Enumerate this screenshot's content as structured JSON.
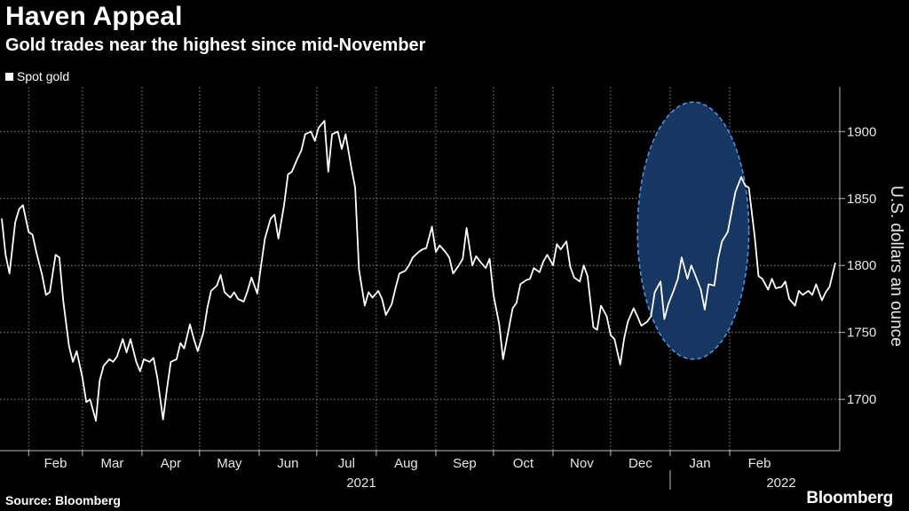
{
  "header": {
    "title": "Haven Appeal",
    "subtitle": "Gold trades near the highest since mid-November",
    "legend_label": "Spot gold"
  },
  "footer": {
    "source": "Source: Bloomberg",
    "brand": "Bloomberg"
  },
  "colors": {
    "background": "#000000",
    "line": "#ffffff",
    "highlight_fill": "#173a66",
    "highlight_stroke": "#4d90e0"
  },
  "chart_data": {
    "type": "line",
    "title": "Haven Appeal",
    "subtitle": "Gold trades near the highest since mid-November",
    "xlabel": "",
    "ylabel": "U.S. dollars an ounce",
    "ylim": [
      1665,
      1930
    ],
    "yticks": [
      1700,
      1750,
      1800,
      1850,
      1900
    ],
    "grid": true,
    "legend": "top-left",
    "year_labels": [
      "2021",
      "2022"
    ],
    "x_ticks": [
      {
        "label": "Feb",
        "date": "2021-02-01"
      },
      {
        "label": "Mar",
        "date": "2021-03-01"
      },
      {
        "label": "Apr",
        "date": "2021-04-01"
      },
      {
        "label": "May",
        "date": "2021-05-01"
      },
      {
        "label": "Jun",
        "date": "2021-06-01"
      },
      {
        "label": "Jul",
        "date": "2021-07-01"
      },
      {
        "label": "Aug",
        "date": "2021-08-01"
      },
      {
        "label": "Sep",
        "date": "2021-09-01"
      },
      {
        "label": "Oct",
        "date": "2021-10-01"
      },
      {
        "label": "Nov",
        "date": "2021-11-01"
      },
      {
        "label": "Dec",
        "date": "2021-12-01"
      },
      {
        "label": "Jan",
        "date": "2022-01-01"
      },
      {
        "label": "Feb",
        "date": "2022-02-01"
      }
    ],
    "highlight": {
      "shape": "ellipse",
      "x_start": "2021-12-15",
      "x_end": "2022-02-11",
      "y_min": 1730,
      "y_max": 1922
    },
    "series": [
      {
        "name": "Spot gold",
        "points": [
          [
            "2021-01-18",
            1835
          ],
          [
            "2021-01-20",
            1808
          ],
          [
            "2021-01-22",
            1794
          ],
          [
            "2021-01-25",
            1832
          ],
          [
            "2021-01-27",
            1842
          ],
          [
            "2021-01-29",
            1845
          ],
          [
            "2021-02-01",
            1825
          ],
          [
            "2021-02-03",
            1823
          ],
          [
            "2021-02-05",
            1810
          ],
          [
            "2021-02-08",
            1793
          ],
          [
            "2021-02-10",
            1778
          ],
          [
            "2021-02-12",
            1780
          ],
          [
            "2021-02-15",
            1808
          ],
          [
            "2021-02-17",
            1806
          ],
          [
            "2021-02-19",
            1774
          ],
          [
            "2021-02-22",
            1740
          ],
          [
            "2021-02-24",
            1728
          ],
          [
            "2021-02-26",
            1736
          ],
          [
            "2021-03-01",
            1716
          ],
          [
            "2021-03-03",
            1698
          ],
          [
            "2021-03-05",
            1700
          ],
          [
            "2021-03-08",
            1684
          ],
          [
            "2021-03-10",
            1714
          ],
          [
            "2021-03-12",
            1725
          ],
          [
            "2021-03-15",
            1730
          ],
          [
            "2021-03-17",
            1728
          ],
          [
            "2021-03-19",
            1732
          ],
          [
            "2021-03-22",
            1745
          ],
          [
            "2021-03-24",
            1735
          ],
          [
            "2021-03-26",
            1745
          ],
          [
            "2021-03-29",
            1728
          ],
          [
            "2021-03-31",
            1721
          ],
          [
            "2021-04-02",
            1730
          ],
          [
            "2021-04-05",
            1728
          ],
          [
            "2021-04-07",
            1731
          ],
          [
            "2021-04-09",
            1716
          ],
          [
            "2021-04-12",
            1685
          ],
          [
            "2021-04-14",
            1708
          ],
          [
            "2021-04-16",
            1728
          ],
          [
            "2021-04-19",
            1730
          ],
          [
            "2021-04-21",
            1742
          ],
          [
            "2021-04-23",
            1738
          ],
          [
            "2021-04-26",
            1756
          ],
          [
            "2021-04-28",
            1745
          ],
          [
            "2021-04-30",
            1736
          ],
          [
            "2021-05-03",
            1750
          ],
          [
            "2021-05-05",
            1768
          ],
          [
            "2021-05-07",
            1781
          ],
          [
            "2021-05-10",
            1785
          ],
          [
            "2021-05-12",
            1793
          ],
          [
            "2021-05-14",
            1780
          ],
          [
            "2021-05-17",
            1776
          ],
          [
            "2021-05-19",
            1780
          ],
          [
            "2021-05-21",
            1775
          ],
          [
            "2021-05-24",
            1773
          ],
          [
            "2021-05-26",
            1781
          ],
          [
            "2021-05-28",
            1791
          ],
          [
            "2021-05-31",
            1779
          ],
          [
            "2021-06-02",
            1800
          ],
          [
            "2021-06-04",
            1820
          ],
          [
            "2021-06-07",
            1835
          ],
          [
            "2021-06-09",
            1838
          ],
          [
            "2021-06-11",
            1820
          ],
          [
            "2021-06-14",
            1845
          ],
          [
            "2021-06-16",
            1868
          ],
          [
            "2021-06-18",
            1870
          ],
          [
            "2021-06-21",
            1880
          ],
          [
            "2021-06-23",
            1886
          ],
          [
            "2021-06-25",
            1898
          ],
          [
            "2021-06-28",
            1900
          ],
          [
            "2021-06-30",
            1893
          ],
          [
            "2021-07-02",
            1903
          ],
          [
            "2021-07-05",
            1908
          ],
          [
            "2021-07-07",
            1870
          ],
          [
            "2021-07-09",
            1898
          ],
          [
            "2021-07-12",
            1900
          ],
          [
            "2021-07-14",
            1887
          ],
          [
            "2021-07-16",
            1898
          ],
          [
            "2021-07-19",
            1873
          ],
          [
            "2021-07-21",
            1858
          ],
          [
            "2021-07-23",
            1797
          ],
          [
            "2021-07-26",
            1770
          ],
          [
            "2021-07-28",
            1780
          ],
          [
            "2021-07-30",
            1776
          ],
          [
            "2021-08-02",
            1781
          ],
          [
            "2021-08-04",
            1775
          ],
          [
            "2021-08-06",
            1763
          ],
          [
            "2021-08-09",
            1771
          ],
          [
            "2021-08-11",
            1783
          ],
          [
            "2021-08-13",
            1794
          ],
          [
            "2021-08-16",
            1796
          ],
          [
            "2021-08-18",
            1800
          ],
          [
            "2021-08-20",
            1806
          ],
          [
            "2021-08-23",
            1810
          ],
          [
            "2021-08-25",
            1812
          ],
          [
            "2021-08-27",
            1813
          ],
          [
            "2021-08-30",
            1829
          ],
          [
            "2021-09-01",
            1810
          ],
          [
            "2021-09-03",
            1815
          ],
          [
            "2021-09-06",
            1810
          ],
          [
            "2021-09-08",
            1806
          ],
          [
            "2021-09-10",
            1794
          ],
          [
            "2021-09-13",
            1800
          ],
          [
            "2021-09-15",
            1805
          ],
          [
            "2021-09-17",
            1828
          ],
          [
            "2021-09-20",
            1800
          ],
          [
            "2021-09-22",
            1807
          ],
          [
            "2021-09-24",
            1803
          ],
          [
            "2021-09-27",
            1798
          ],
          [
            "2021-09-29",
            1805
          ],
          [
            "2021-10-01",
            1778
          ],
          [
            "2021-10-04",
            1756
          ],
          [
            "2021-10-06",
            1730
          ],
          [
            "2021-10-08",
            1745
          ],
          [
            "2021-10-11",
            1768
          ],
          [
            "2021-10-13",
            1772
          ],
          [
            "2021-10-15",
            1786
          ],
          [
            "2021-10-18",
            1789
          ],
          [
            "2021-10-20",
            1790
          ],
          [
            "2021-10-22",
            1798
          ],
          [
            "2021-10-25",
            1795
          ],
          [
            "2021-10-27",
            1803
          ],
          [
            "2021-10-29",
            1808
          ],
          [
            "2021-11-01",
            1800
          ],
          [
            "2021-11-03",
            1816
          ],
          [
            "2021-11-05",
            1812
          ],
          [
            "2021-11-08",
            1818
          ],
          [
            "2021-11-10",
            1799
          ],
          [
            "2021-11-12",
            1791
          ],
          [
            "2021-11-15",
            1788
          ],
          [
            "2021-11-17",
            1800
          ],
          [
            "2021-11-19",
            1792
          ],
          [
            "2021-11-22",
            1754
          ],
          [
            "2021-11-24",
            1752
          ],
          [
            "2021-11-26",
            1770
          ],
          [
            "2021-11-29",
            1762
          ],
          [
            "2021-12-01",
            1748
          ],
          [
            "2021-12-03",
            1745
          ],
          [
            "2021-12-06",
            1726
          ],
          [
            "2021-12-08",
            1745
          ],
          [
            "2021-12-10",
            1758
          ],
          [
            "2021-12-13",
            1768
          ],
          [
            "2021-12-15",
            1762
          ],
          [
            "2021-12-17",
            1755
          ],
          [
            "2021-12-20",
            1758
          ],
          [
            "2021-12-22",
            1762
          ],
          [
            "2021-12-24",
            1780
          ],
          [
            "2021-12-27",
            1788
          ],
          [
            "2021-12-29",
            1760
          ],
          [
            "2021-12-31",
            1771
          ],
          [
            "2022-01-03",
            1782
          ],
          [
            "2022-01-05",
            1790
          ],
          [
            "2022-01-07",
            1806
          ],
          [
            "2022-01-10",
            1790
          ],
          [
            "2022-01-12",
            1800
          ],
          [
            "2022-01-14",
            1793
          ],
          [
            "2022-01-17",
            1782
          ],
          [
            "2022-01-19",
            1767
          ],
          [
            "2022-01-21",
            1786
          ],
          [
            "2022-01-24",
            1785
          ],
          [
            "2022-01-26",
            1805
          ],
          [
            "2022-01-28",
            1818
          ],
          [
            "2022-01-31",
            1825
          ],
          [
            "2022-02-02",
            1840
          ],
          [
            "2022-02-04",
            1855
          ],
          [
            "2022-02-07",
            1866
          ],
          [
            "2022-02-09",
            1860
          ],
          [
            "2022-02-11",
            1858
          ],
          [
            "2022-02-14",
            1822
          ],
          [
            "2022-02-16",
            1792
          ],
          [
            "2022-02-18",
            1790
          ],
          [
            "2022-02-21",
            1782
          ],
          [
            "2022-02-23",
            1790
          ],
          [
            "2022-02-25",
            1783
          ],
          [
            "2022-02-28",
            1784
          ],
          [
            "2022-03-02",
            1788
          ],
          [
            "2022-03-04",
            1775
          ],
          [
            "2022-03-07",
            1770
          ],
          [
            "2022-03-09",
            1781
          ],
          [
            "2022-03-11",
            1778
          ],
          [
            "2022-03-14",
            1781
          ],
          [
            "2022-03-16",
            1778
          ],
          [
            "2022-03-18",
            1786
          ],
          [
            "2022-03-21",
            1774
          ],
          [
            "2022-03-23",
            1780
          ],
          [
            "2022-03-25",
            1784
          ],
          [
            "2022-03-28",
            1802
          ]
        ]
      }
    ]
  }
}
